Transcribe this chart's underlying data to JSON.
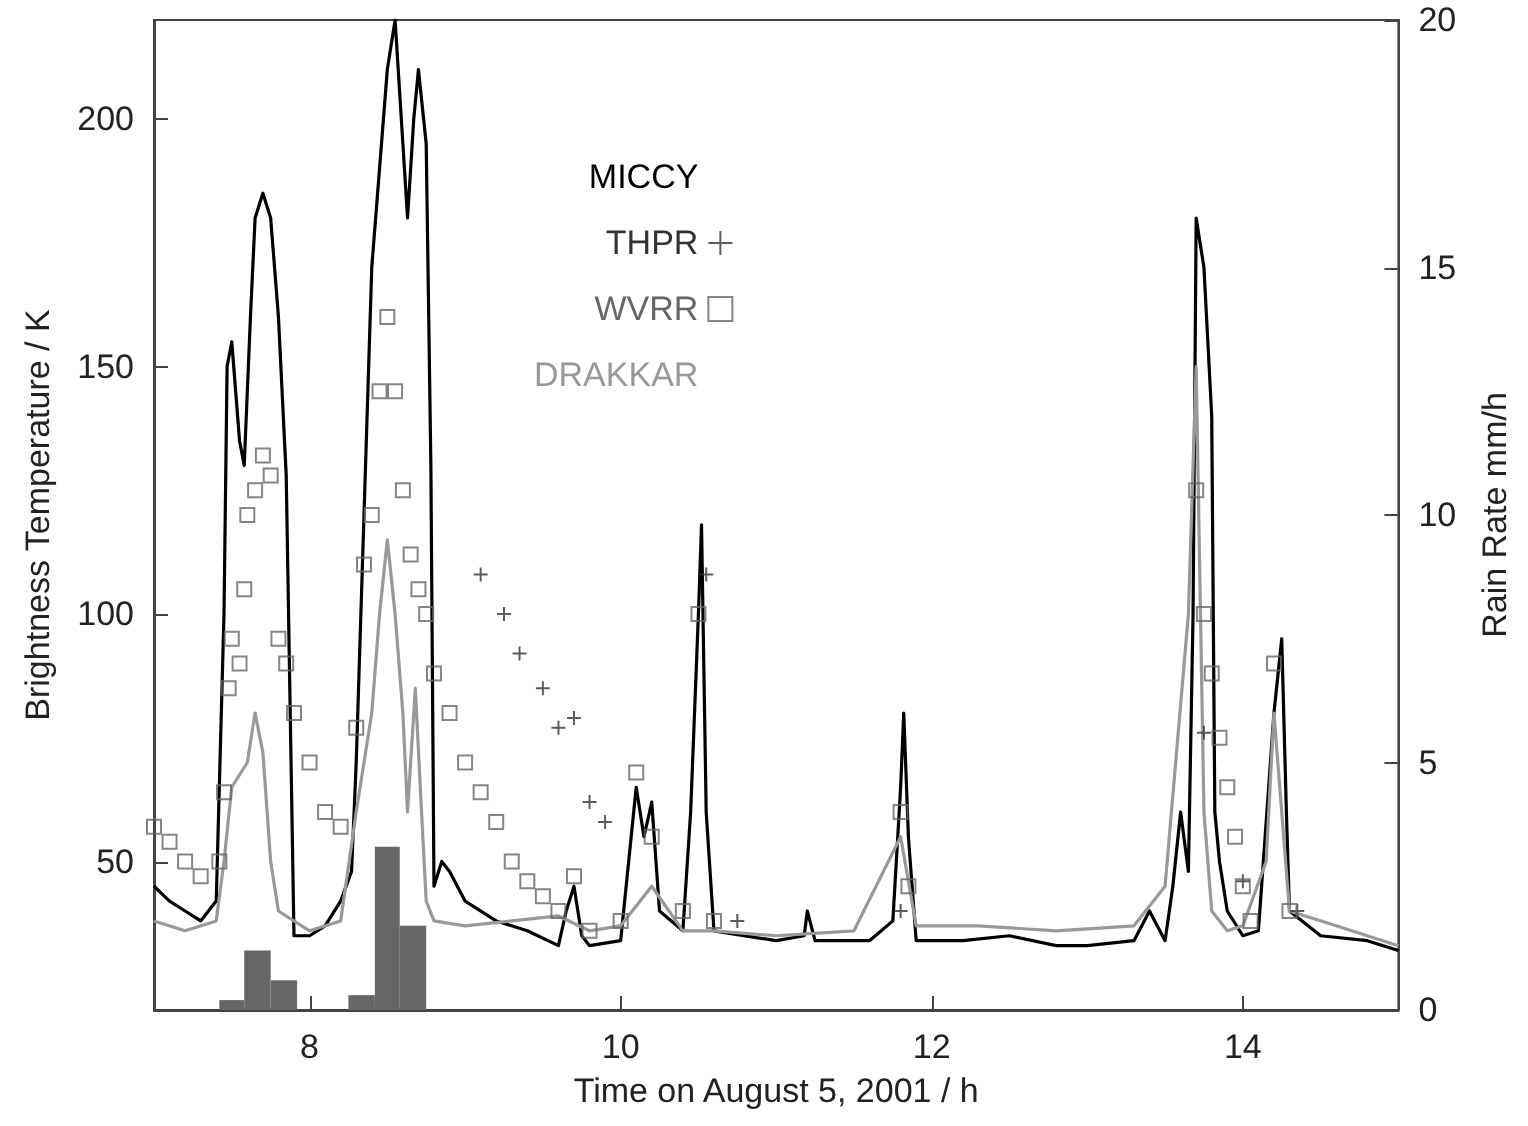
{
  "chart_data": {
    "type": "line",
    "xlabel": "Time on August 5, 2001 / h",
    "ylabel": "Brightness Temperature / K",
    "y2label": "Rain Rate mm/h",
    "xlim": [
      7,
      15
    ],
    "xticks": [
      8,
      10,
      12,
      14
    ],
    "ylim": [
      20,
      220
    ],
    "yticks": [
      50,
      100,
      150,
      200
    ],
    "y2lim": [
      0,
      20
    ],
    "y2ticks": [
      0,
      5,
      10,
      15,
      20
    ],
    "legend": "top",
    "grid": false,
    "series": [
      {
        "name": "MICCY",
        "marker": "none",
        "color": "#000000",
        "x": [
          7.0,
          7.1,
          7.2,
          7.3,
          7.4,
          7.45,
          7.47,
          7.5,
          7.55,
          7.58,
          7.62,
          7.65,
          7.7,
          7.75,
          7.8,
          7.85,
          7.9,
          8.0,
          8.1,
          8.2,
          8.27,
          8.3,
          8.35,
          8.4,
          8.45,
          8.5,
          8.55,
          8.6,
          8.63,
          8.67,
          8.7,
          8.75,
          8.78,
          8.8,
          8.85,
          8.9,
          9.0,
          9.2,
          9.4,
          9.6,
          9.65,
          9.7,
          9.75,
          9.8,
          10.0,
          10.1,
          10.15,
          10.2,
          10.25,
          10.4,
          10.45,
          10.5,
          10.52,
          10.55,
          10.6,
          11.0,
          11.18,
          11.2,
          11.25,
          11.6,
          11.75,
          11.8,
          11.82,
          11.85,
          11.9,
          12.2,
          12.5,
          12.8,
          13.0,
          13.3,
          13.4,
          13.5,
          13.55,
          13.6,
          13.65,
          13.68,
          13.7,
          13.75,
          13.8,
          13.82,
          13.85,
          13.9,
          14.0,
          14.1,
          14.2,
          14.25,
          14.28,
          14.3,
          14.5,
          14.8,
          15.0
        ],
        "values": [
          45,
          42,
          40,
          38,
          42,
          100,
          150,
          155,
          135,
          130,
          160,
          180,
          185,
          180,
          160,
          128,
          35,
          35,
          37,
          42,
          48,
          70,
          120,
          170,
          190,
          210,
          220,
          195,
          180,
          200,
          210,
          195,
          130,
          45,
          50,
          48,
          42,
          38,
          36,
          33,
          40,
          45,
          35,
          33,
          34,
          65,
          55,
          62,
          40,
          36,
          60,
          100,
          118,
          60,
          36,
          34,
          35,
          40,
          34,
          34,
          38,
          65,
          80,
          55,
          34,
          34,
          35,
          33,
          33,
          34,
          40,
          34,
          45,
          60,
          48,
          100,
          180,
          170,
          140,
          60,
          50,
          40,
          35,
          36,
          80,
          95,
          60,
          40,
          35,
          34,
          32
        ]
      },
      {
        "name": "THPR",
        "type": "scatter",
        "marker": "cross",
        "color": "#333333",
        "x": [
          9.1,
          9.25,
          9.35,
          9.5,
          9.6,
          9.7,
          9.8,
          9.9,
          10.55,
          10.75,
          11.8,
          13.75,
          14.0,
          14.35
        ],
        "values": [
          108,
          100,
          92,
          85,
          77,
          79,
          62,
          58,
          108,
          38,
          40,
          76,
          46,
          40
        ]
      },
      {
        "name": "WVRR",
        "type": "scatter",
        "marker": "square",
        "color": "#666666",
        "x": [
          7.0,
          7.1,
          7.2,
          7.3,
          7.42,
          7.45,
          7.48,
          7.5,
          7.55,
          7.58,
          7.6,
          7.65,
          7.7,
          7.75,
          7.8,
          7.85,
          7.9,
          8.0,
          8.1,
          8.2,
          8.3,
          8.35,
          8.4,
          8.45,
          8.5,
          8.55,
          8.6,
          8.65,
          8.7,
          8.75,
          8.8,
          8.9,
          9.0,
          9.1,
          9.2,
          9.3,
          9.4,
          9.5,
          9.6,
          9.7,
          9.8,
          10.0,
          10.1,
          10.2,
          10.4,
          10.5,
          10.6,
          11.8,
          11.85,
          13.7,
          13.75,
          13.8,
          13.85,
          13.9,
          13.95,
          14.0,
          14.05,
          14.2,
          14.3
        ],
        "values": [
          57,
          54,
          50,
          47,
          50,
          64,
          85,
          95,
          90,
          105,
          120,
          125,
          132,
          128,
          95,
          90,
          80,
          70,
          60,
          57,
          77,
          110,
          120,
          145,
          160,
          145,
          125,
          112,
          105,
          100,
          88,
          80,
          70,
          64,
          58,
          50,
          46,
          43,
          40,
          47,
          36,
          38,
          68,
          55,
          40,
          100,
          38,
          60,
          45,
          125,
          100,
          88,
          75,
          65,
          55,
          45,
          38,
          90,
          40
        ]
      },
      {
        "name": "DRAKKAR",
        "marker": "none",
        "color": "#999999",
        "x": [
          7.0,
          7.2,
          7.4,
          7.45,
          7.5,
          7.6,
          7.65,
          7.7,
          7.75,
          7.8,
          8.0,
          8.2,
          8.3,
          8.4,
          8.45,
          8.5,
          8.55,
          8.6,
          8.63,
          8.68,
          8.72,
          8.75,
          8.8,
          9.0,
          9.3,
          9.6,
          9.8,
          10.0,
          10.2,
          10.4,
          10.6,
          11.0,
          11.5,
          11.8,
          11.9,
          12.3,
          12.8,
          13.3,
          13.5,
          13.65,
          13.7,
          13.75,
          13.8,
          13.9,
          14.0,
          14.15,
          14.2,
          14.3,
          14.6,
          15.0
        ],
        "values": [
          38,
          36,
          38,
          50,
          65,
          70,
          80,
          72,
          50,
          40,
          36,
          38,
          60,
          80,
          100,
          115,
          100,
          80,
          60,
          85,
          60,
          42,
          38,
          37,
          38,
          39,
          36,
          37,
          45,
          36,
          36,
          35,
          36,
          55,
          37,
          37,
          36,
          37,
          45,
          100,
          150,
          60,
          40,
          36,
          37,
          50,
          80,
          40,
          37,
          33
        ]
      },
      {
        "type": "histogram",
        "axis": "y2",
        "color": "#666666",
        "bins": [
          7.42,
          7.58,
          7.75,
          7.92
        ],
        "values": [
          0.2,
          1.2,
          0.6
        ]
      },
      {
        "type": "histogram",
        "axis": "y2",
        "color": "#666666",
        "bins": [
          8.25,
          8.42,
          8.58,
          8.75
        ],
        "values": [
          0.3,
          3.3,
          1.7
        ]
      }
    ]
  }
}
